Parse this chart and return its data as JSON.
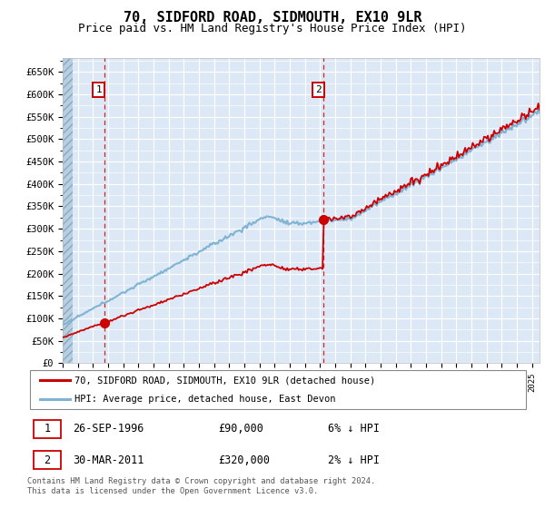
{
  "title": "70, SIDFORD ROAD, SIDMOUTH, EX10 9LR",
  "subtitle": "Price paid vs. HM Land Registry's House Price Index (HPI)",
  "ylim": [
    0,
    680000
  ],
  "xlim_start": 1994.0,
  "xlim_end": 2025.5,
  "background_color": "#dce8f5",
  "grid_color": "#ffffff",
  "purchase1_date": 1996.74,
  "purchase1_price": 90000,
  "purchase2_date": 2011.24,
  "purchase2_price": 320000,
  "legend_line1": "70, SIDFORD ROAD, SIDMOUTH, EX10 9LR (detached house)",
  "legend_line2": "HPI: Average price, detached house, East Devon",
  "table_row1": [
    "1",
    "26-SEP-1996",
    "£90,000",
    "6% ↓ HPI"
  ],
  "table_row2": [
    "2",
    "30-MAR-2011",
    "£320,000",
    "2% ↓ HPI"
  ],
  "footnote": "Contains HM Land Registry data © Crown copyright and database right 2024.\nThis data is licensed under the Open Government Licence v3.0.",
  "red_color": "#cc0000",
  "blue_color": "#7fb3d3",
  "title_fontsize": 11,
  "subtitle_fontsize": 9
}
